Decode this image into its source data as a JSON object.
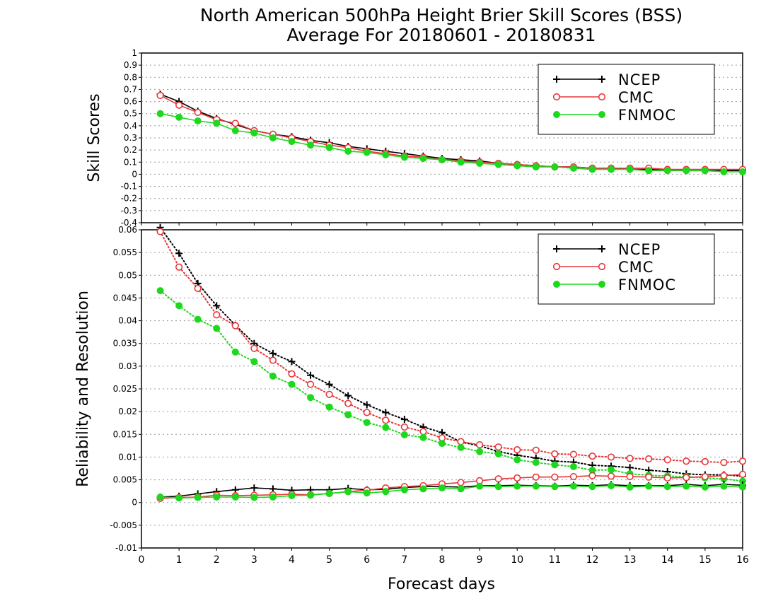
{
  "title_line1": "North American 500hPa Height Brier Skill Scores (BSS)",
  "title_line2": "Average For 20180601 - 20180831",
  "xlabel": "Forecast days",
  "colors": {
    "NCEP": "#000000",
    "CMC": "#e8363a",
    "FNMOC": "#1ed81e",
    "grid": "#9a9a9a"
  },
  "chart_data": [
    {
      "type": "line",
      "panel": "top",
      "ylabel": "Skill Scores",
      "ylim": [
        -0.4,
        1.0
      ],
      "yticks": [
        "-0.4",
        "-0.3",
        "-0.2",
        "-0.1",
        "0",
        "0.1",
        "0.2",
        "0.3",
        "0.4",
        "0.5",
        "0.6",
        "0.7",
        "0.8",
        "0.9",
        "1"
      ],
      "xlim": [
        0,
        16
      ],
      "xticks": [
        "0",
        "1",
        "2",
        "3",
        "4",
        "5",
        "6",
        "7",
        "8",
        "9",
        "10",
        "11",
        "12",
        "13",
        "14",
        "15",
        "16"
      ],
      "grid": true,
      "legend_position": "top-right",
      "x": [
        0.5,
        1,
        1.5,
        2,
        2.5,
        3,
        3.5,
        4,
        4.5,
        5,
        5.5,
        6,
        6.5,
        7,
        7.5,
        8,
        8.5,
        9,
        9.5,
        10,
        10.5,
        11,
        11.5,
        12,
        12.5,
        13,
        13.5,
        14,
        14.5,
        15,
        15.5,
        16
      ],
      "series": [
        {
          "name": "NCEP",
          "marker": "plus",
          "values": [
            0.66,
            0.6,
            0.52,
            0.46,
            0.41,
            0.36,
            0.33,
            0.31,
            0.28,
            0.26,
            0.23,
            0.21,
            0.19,
            0.17,
            0.15,
            0.13,
            0.12,
            0.11,
            0.09,
            0.08,
            0.07,
            0.06,
            0.06,
            0.05,
            0.05,
            0.04,
            0.04,
            0.04,
            0.03,
            0.03,
            0.03,
            0.03
          ]
        },
        {
          "name": "CMC",
          "marker": "open-circle",
          "values": [
            0.65,
            0.57,
            0.51,
            0.45,
            0.42,
            0.36,
            0.33,
            0.3,
            0.27,
            0.24,
            0.22,
            0.19,
            0.17,
            0.15,
            0.14,
            0.12,
            0.11,
            0.1,
            0.09,
            0.08,
            0.07,
            0.06,
            0.06,
            0.05,
            0.05,
            0.05,
            0.05,
            0.04,
            0.04,
            0.04,
            0.04,
            0.04
          ]
        },
        {
          "name": "FNMOC",
          "marker": "filled-circle",
          "values": [
            0.5,
            0.47,
            0.44,
            0.42,
            0.36,
            0.34,
            0.3,
            0.27,
            0.24,
            0.22,
            0.19,
            0.18,
            0.16,
            0.14,
            0.13,
            0.12,
            0.1,
            0.09,
            0.08,
            0.07,
            0.06,
            0.06,
            0.05,
            0.04,
            0.04,
            0.04,
            0.03,
            0.03,
            0.03,
            0.03,
            0.02,
            0.02
          ]
        }
      ]
    },
    {
      "type": "line",
      "panel": "bottom",
      "ylabel": "Reliability and Resolution",
      "ylim": [
        -0.01,
        0.06
      ],
      "yticks": [
        "-0.01",
        "-0.005",
        "0",
        "0.005",
        "0.01",
        "0.015",
        "0.02",
        "0.025",
        "0.03",
        "0.035",
        "0.04",
        "0.045",
        "0.05",
        "0.055",
        "0.06"
      ],
      "xlim": [
        0,
        16
      ],
      "xticks": [
        "0",
        "1",
        "2",
        "3",
        "4",
        "5",
        "6",
        "7",
        "8",
        "9",
        "10",
        "11",
        "12",
        "13",
        "14",
        "15",
        "16"
      ],
      "grid": true,
      "legend_position": "top-right",
      "x": [
        0.5,
        1,
        1.5,
        2,
        2.5,
        3,
        3.5,
        4,
        4.5,
        5,
        5.5,
        6,
        6.5,
        7,
        7.5,
        8,
        8.5,
        9,
        9.5,
        10,
        10.5,
        11,
        11.5,
        12,
        12.5,
        13,
        13.5,
        14,
        14.5,
        15,
        15.5,
        16
      ],
      "series": [
        {
          "name": "NCEP",
          "kind": "resolution",
          "linestyle": "dotted",
          "marker": "plus",
          "values": [
            0.0605,
            0.0548,
            0.0482,
            0.0433,
            0.039,
            0.035,
            0.0328,
            0.031,
            0.028,
            0.026,
            0.0235,
            0.0215,
            0.0198,
            0.0183,
            0.0166,
            0.0154,
            0.0133,
            0.0125,
            0.0112,
            0.0104,
            0.0098,
            0.0091,
            0.0089,
            0.0082,
            0.008,
            0.0077,
            0.0071,
            0.0068,
            0.0063,
            0.0061,
            0.0061,
            0.0058
          ]
        },
        {
          "name": "CMC",
          "kind": "resolution",
          "linestyle": "dotted",
          "marker": "open-circle",
          "values": [
            0.0596,
            0.0518,
            0.0471,
            0.0413,
            0.0389,
            0.0339,
            0.0313,
            0.0283,
            0.026,
            0.0238,
            0.0218,
            0.0198,
            0.0181,
            0.0166,
            0.0156,
            0.0142,
            0.0134,
            0.0127,
            0.0122,
            0.0116,
            0.0115,
            0.0107,
            0.0106,
            0.0102,
            0.01,
            0.0097,
            0.0096,
            0.0094,
            0.0091,
            0.009,
            0.0088,
            0.0091
          ]
        },
        {
          "name": "FNMOC",
          "kind": "resolution",
          "linestyle": "dotted",
          "marker": "filled-circle",
          "values": [
            0.0466,
            0.0433,
            0.0403,
            0.0383,
            0.0331,
            0.031,
            0.0278,
            0.026,
            0.0231,
            0.021,
            0.0193,
            0.0176,
            0.0165,
            0.0149,
            0.0143,
            0.013,
            0.0121,
            0.0112,
            0.0107,
            0.0094,
            0.0088,
            0.0083,
            0.0079,
            0.0071,
            0.0072,
            0.0063,
            0.006,
            0.0058,
            0.0057,
            0.0054,
            0.0052,
            0.0047
          ]
        },
        {
          "name": "NCEP",
          "kind": "reliability",
          "linestyle": "solid",
          "marker": "plus",
          "values": [
            0.0012,
            0.0014,
            0.0019,
            0.0024,
            0.0028,
            0.0032,
            0.003,
            0.0027,
            0.0028,
            0.0028,
            0.0031,
            0.0028,
            0.0029,
            0.0033,
            0.0035,
            0.0035,
            0.0034,
            0.0037,
            0.0037,
            0.0038,
            0.0037,
            0.0036,
            0.0038,
            0.0037,
            0.0039,
            0.0037,
            0.0037,
            0.0037,
            0.004,
            0.0037,
            0.004,
            0.0038
          ]
        },
        {
          "name": "CMC",
          "kind": "reliability",
          "linestyle": "solid",
          "marker": "open-circle",
          "values": [
            0.0009,
            0.0011,
            0.0012,
            0.0016,
            0.0015,
            0.0016,
            0.0017,
            0.0018,
            0.0017,
            0.002,
            0.0024,
            0.0027,
            0.0032,
            0.0035,
            0.0037,
            0.0041,
            0.0044,
            0.0048,
            0.0052,
            0.0054,
            0.0056,
            0.0056,
            0.0057,
            0.0059,
            0.0058,
            0.0057,
            0.0056,
            0.0054,
            0.0055,
            0.0057,
            0.0059,
            0.0062
          ]
        },
        {
          "name": "FNMOC",
          "kind": "reliability",
          "linestyle": "solid",
          "marker": "filled-circle",
          "values": [
            0.0012,
            0.001,
            0.0011,
            0.0012,
            0.0012,
            0.0011,
            0.0012,
            0.0015,
            0.0016,
            0.002,
            0.0024,
            0.0021,
            0.0024,
            0.0028,
            0.003,
            0.0032,
            0.003,
            0.0036,
            0.0035,
            0.0036,
            0.0036,
            0.0035,
            0.0036,
            0.0035,
            0.0037,
            0.0034,
            0.0036,
            0.0035,
            0.0036,
            0.0034,
            0.0036,
            0.0034
          ]
        }
      ]
    }
  ]
}
